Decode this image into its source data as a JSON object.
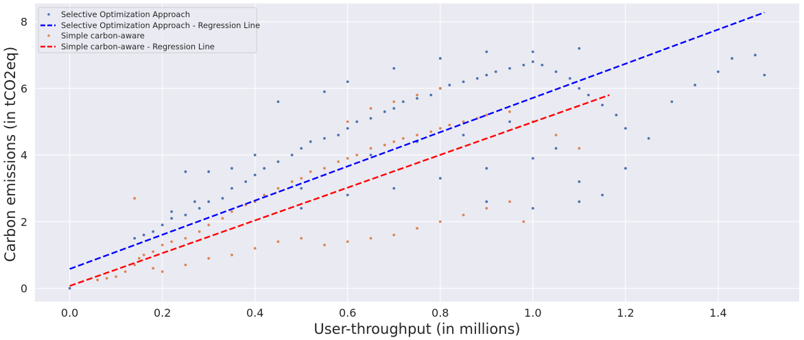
{
  "chart_data": {
    "type": "scatter",
    "xlabel": "User-throughput (in millions)",
    "ylabel": "Carbon emissions (in tCO2eq)",
    "xlim": [
      -0.075,
      1.575
    ],
    "ylim": [
      -0.4,
      8.55
    ],
    "x_ticks": [
      0.0,
      0.2,
      0.4,
      0.6,
      0.8,
      1.0,
      1.2,
      1.4
    ],
    "x_tick_labels": [
      "0.0",
      "0.2",
      "0.4",
      "0.6",
      "0.8",
      "1.0",
      "1.2",
      "1.4"
    ],
    "y_ticks": [
      0,
      2,
      4,
      6,
      8
    ],
    "y_tick_labels": [
      "0",
      "2",
      "4",
      "6",
      "8"
    ],
    "grid": true,
    "legend_position": "top-left",
    "legend": [
      "Selective Optimization Approach",
      "Selective Optimization Approach - Regression Line",
      "Simple carbon-aware",
      "Simple carbon-aware - Regression Line"
    ],
    "series": [
      {
        "name": "Selective Optimization Approach",
        "kind": "scatter",
        "color": "#4c72b0",
        "points": [
          [
            0.0,
            0.0
          ],
          [
            0.14,
            1.5
          ],
          [
            0.16,
            1.6
          ],
          [
            0.18,
            1.7
          ],
          [
            0.2,
            1.9
          ],
          [
            0.22,
            2.1
          ],
          [
            0.25,
            2.2
          ],
          [
            0.28,
            2.4
          ],
          [
            0.3,
            2.6
          ],
          [
            0.33,
            2.7
          ],
          [
            0.35,
            3.0
          ],
          [
            0.38,
            3.2
          ],
          [
            0.4,
            3.4
          ],
          [
            0.42,
            3.6
          ],
          [
            0.45,
            3.8
          ],
          [
            0.48,
            4.0
          ],
          [
            0.5,
            4.2
          ],
          [
            0.52,
            4.4
          ],
          [
            0.55,
            4.5
          ],
          [
            0.58,
            4.6
          ],
          [
            0.6,
            4.8
          ],
          [
            0.62,
            5.0
          ],
          [
            0.65,
            5.1
          ],
          [
            0.68,
            5.3
          ],
          [
            0.7,
            5.4
          ],
          [
            0.72,
            5.6
          ],
          [
            0.75,
            5.7
          ],
          [
            0.78,
            5.8
          ],
          [
            0.8,
            6.0
          ],
          [
            0.82,
            6.1
          ],
          [
            0.85,
            6.2
          ],
          [
            0.88,
            6.3
          ],
          [
            0.9,
            6.4
          ],
          [
            0.92,
            6.5
          ],
          [
            0.95,
            6.6
          ],
          [
            0.98,
            6.7
          ],
          [
            1.0,
            6.8
          ],
          [
            1.02,
            6.7
          ],
          [
            1.05,
            6.5
          ],
          [
            1.08,
            6.3
          ],
          [
            1.1,
            6.0
          ],
          [
            1.12,
            5.8
          ],
          [
            1.15,
            5.5
          ],
          [
            1.18,
            5.2
          ],
          [
            1.2,
            4.8
          ],
          [
            1.25,
            4.5
          ],
          [
            1.3,
            5.6
          ],
          [
            1.35,
            6.1
          ],
          [
            1.4,
            6.5
          ],
          [
            1.43,
            6.9
          ],
          [
            1.48,
            7.0
          ],
          [
            1.5,
            6.4
          ],
          [
            0.35,
            3.6
          ],
          [
            0.45,
            5.6
          ],
          [
            0.55,
            5.9
          ],
          [
            0.6,
            6.2
          ],
          [
            0.7,
            6.6
          ],
          [
            0.8,
            6.9
          ],
          [
            0.9,
            7.1
          ],
          [
            1.0,
            7.1
          ],
          [
            1.1,
            7.2
          ],
          [
            0.5,
            2.4
          ],
          [
            0.6,
            2.8
          ],
          [
            0.7,
            3.0
          ],
          [
            0.8,
            3.3
          ],
          [
            0.9,
            3.6
          ],
          [
            1.0,
            3.9
          ],
          [
            1.1,
            2.6
          ],
          [
            1.15,
            2.8
          ],
          [
            1.2,
            3.6
          ],
          [
            0.25,
            3.5
          ],
          [
            0.3,
            3.5
          ],
          [
            0.27,
            2.6
          ],
          [
            0.22,
            2.3
          ],
          [
            0.4,
            4.0
          ],
          [
            0.5,
            3.0
          ],
          [
            0.65,
            4.0
          ],
          [
            0.75,
            4.4
          ],
          [
            0.85,
            4.6
          ],
          [
            0.95,
            5.0
          ],
          [
            1.05,
            4.2
          ],
          [
            1.1,
            3.2
          ],
          [
            1.0,
            2.4
          ],
          [
            0.9,
            2.6
          ]
        ]
      },
      {
        "name": "Selective Optimization Approach - Regression Line",
        "kind": "line",
        "color": "#0000ff",
        "x": [
          0.0,
          1.5
        ],
        "y": [
          0.58,
          8.28
        ]
      },
      {
        "name": "Simple carbon-aware",
        "kind": "scatter",
        "color": "#dd8452",
        "points": [
          [
            0.06,
            0.25
          ],
          [
            0.08,
            0.3
          ],
          [
            0.1,
            0.35
          ],
          [
            0.12,
            0.5
          ],
          [
            0.14,
            0.7
          ],
          [
            0.15,
            0.9
          ],
          [
            0.16,
            1.0
          ],
          [
            0.18,
            1.1
          ],
          [
            0.2,
            1.3
          ],
          [
            0.22,
            1.4
          ],
          [
            0.25,
            1.5
          ],
          [
            0.28,
            1.7
          ],
          [
            0.3,
            1.9
          ],
          [
            0.33,
            2.1
          ],
          [
            0.35,
            2.3
          ],
          [
            0.38,
            2.5
          ],
          [
            0.4,
            2.6
          ],
          [
            0.42,
            2.8
          ],
          [
            0.45,
            3.0
          ],
          [
            0.48,
            3.2
          ],
          [
            0.5,
            3.3
          ],
          [
            0.52,
            3.5
          ],
          [
            0.55,
            3.6
          ],
          [
            0.58,
            3.8
          ],
          [
            0.6,
            3.9
          ],
          [
            0.62,
            4.0
          ],
          [
            0.65,
            4.2
          ],
          [
            0.68,
            4.3
          ],
          [
            0.7,
            4.4
          ],
          [
            0.72,
            4.5
          ],
          [
            0.75,
            4.6
          ],
          [
            0.78,
            4.7
          ],
          [
            0.8,
            4.8
          ],
          [
            0.82,
            4.9
          ],
          [
            0.85,
            5.0
          ],
          [
            0.88,
            5.1
          ],
          [
            0.9,
            5.2
          ],
          [
            0.95,
            5.3
          ],
          [
            1.0,
            5.0
          ],
          [
            1.05,
            4.6
          ],
          [
            1.1,
            4.2
          ],
          [
            0.5,
            1.5
          ],
          [
            0.55,
            1.3
          ],
          [
            0.6,
            1.4
          ],
          [
            0.65,
            1.5
          ],
          [
            0.7,
            1.6
          ],
          [
            0.75,
            1.8
          ],
          [
            0.8,
            2.0
          ],
          [
            0.85,
            2.2
          ],
          [
            0.9,
            2.4
          ],
          [
            0.95,
            2.6
          ],
          [
            0.98,
            2.0
          ],
          [
            0.6,
            5.0
          ],
          [
            0.65,
            5.4
          ],
          [
            0.7,
            5.6
          ],
          [
            0.75,
            5.8
          ],
          [
            0.8,
            6.0
          ],
          [
            0.18,
            0.6
          ],
          [
            0.2,
            0.5
          ],
          [
            0.25,
            0.7
          ],
          [
            0.3,
            0.9
          ],
          [
            0.14,
            2.7
          ],
          [
            0.4,
            1.2
          ],
          [
            0.45,
            1.4
          ],
          [
            0.35,
            1.0
          ]
        ]
      },
      {
        "name": "Simple carbon-aware - Regression Line",
        "kind": "line",
        "color": "#ff0000",
        "x": [
          0.0,
          1.165
        ],
        "y": [
          0.07,
          5.8
        ]
      }
    ]
  }
}
